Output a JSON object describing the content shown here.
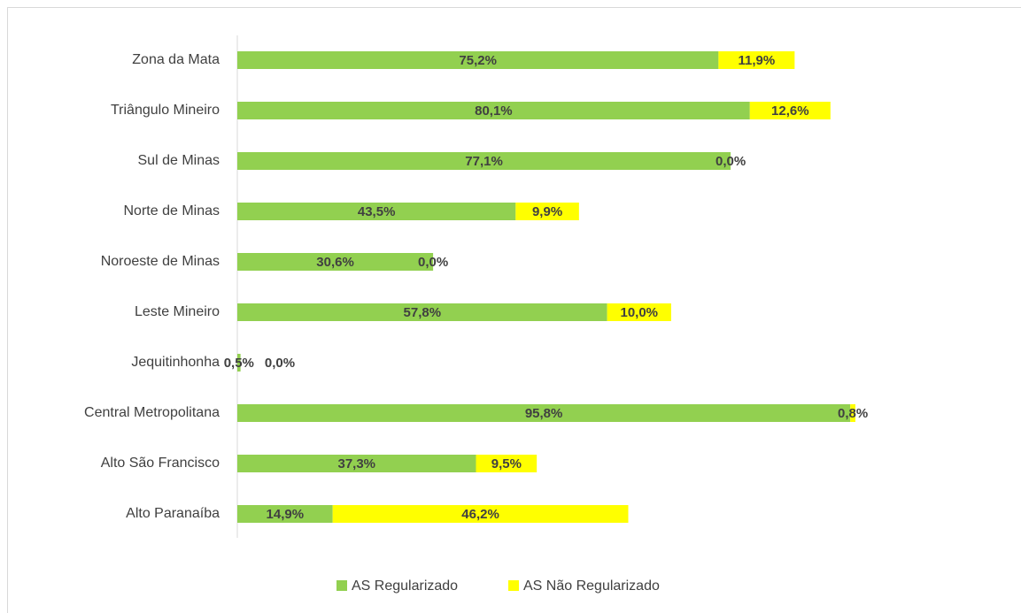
{
  "chart_data": {
    "type": "stacked-barh",
    "categories": [
      "Zona da Mata",
      "Triângulo Mineiro",
      "Sul de Minas",
      "Norte de Minas",
      "Noroeste de Minas",
      "Leste Mineiro",
      "Jequitinhonha",
      "Central Metropolitana",
      "Alto São Francisco",
      "Alto Paranaíba"
    ],
    "series": [
      {
        "name": "AS Regularizado",
        "color": "#92d050",
        "values": [
          75.2,
          80.1,
          77.1,
          43.5,
          30.6,
          57.8,
          0.5,
          95.8,
          37.3,
          14.9
        ],
        "value_labels": [
          "75,2%",
          "80,1%",
          "77,1%",
          "43,5%",
          "30,6%",
          "57,8%",
          "0,5%",
          "95,8%",
          "37,3%",
          "14,9%"
        ]
      },
      {
        "name": "AS Não Regularizado",
        "color": "#ffff00",
        "values": [
          11.9,
          12.6,
          0.0,
          9.9,
          0.0,
          10.0,
          0.0,
          0.8,
          9.5,
          46.2
        ],
        "value_labels": [
          "11,9%",
          "12,6%",
          "0,0%",
          "9,9%",
          "0,0%",
          "10,0%",
          "0,0%",
          "0,8%",
          "9,5%",
          "46,2%"
        ]
      }
    ]
  }
}
